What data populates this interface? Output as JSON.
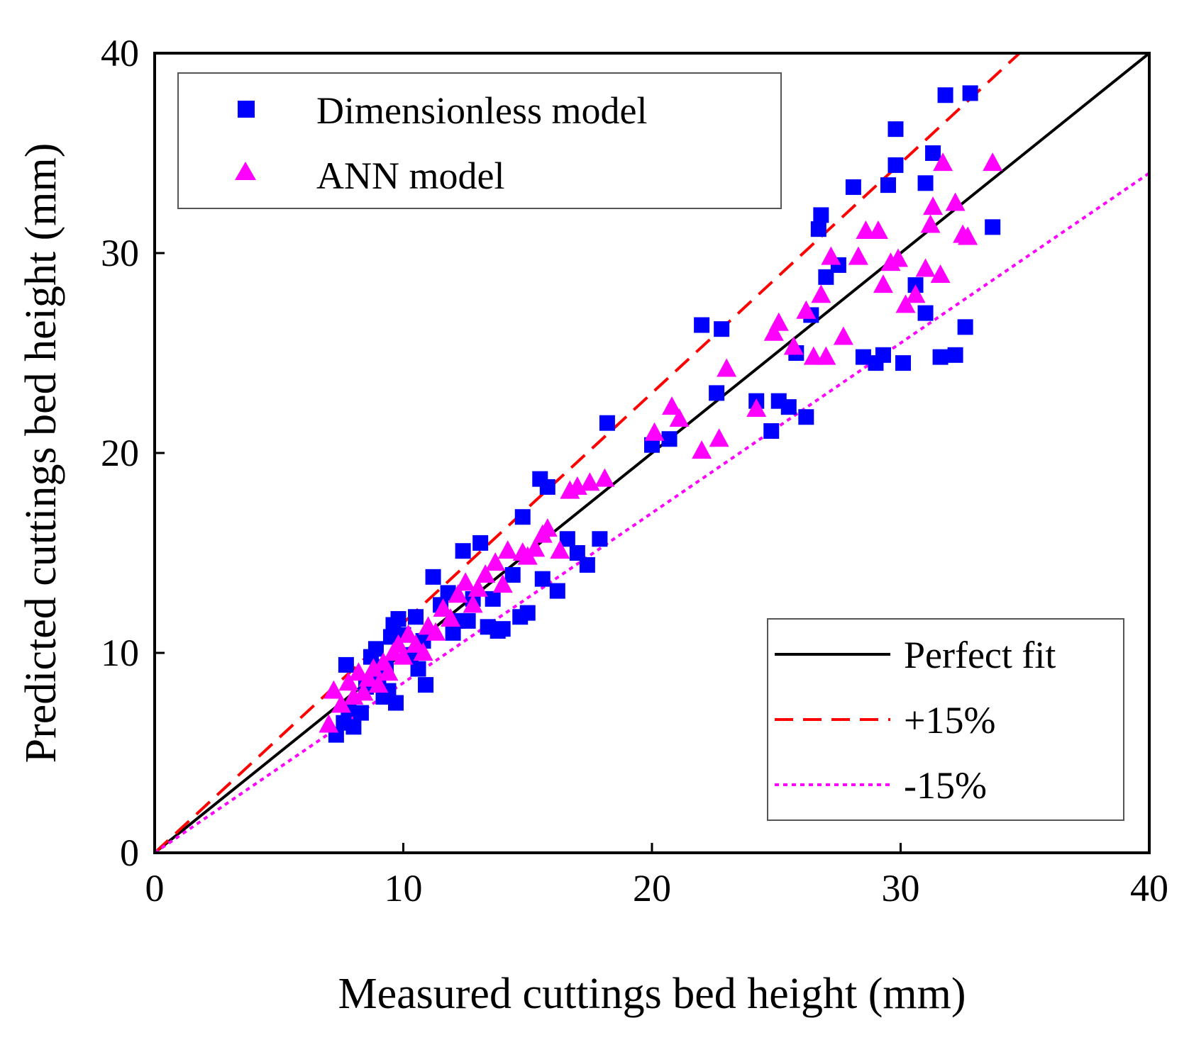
{
  "chart_data": {
    "type": "scatter",
    "title": "",
    "xlabel": "Measured cuttings bed height (mm)",
    "ylabel": "Predicted cuttings bed height (mm)",
    "xlim": [
      0,
      40
    ],
    "ylim": [
      0,
      40
    ],
    "xticks": [
      0,
      10,
      20,
      30,
      40
    ],
    "yticks": [
      0,
      10,
      20,
      30,
      40
    ],
    "grid": false,
    "legend_series_placement": "top-left",
    "legend_lines_placement": "bottom-right",
    "series": [
      {
        "name": "Dimensionless model",
        "marker": "square",
        "color": "#0000ff",
        "points": [
          [
            7.3,
            5.9
          ],
          [
            7.6,
            6.5
          ],
          [
            7.8,
            7.2
          ],
          [
            7.7,
            9.4
          ],
          [
            8.0,
            6.3
          ],
          [
            8.3,
            7.0
          ],
          [
            8.5,
            8.3
          ],
          [
            8.7,
            9.8
          ],
          [
            8.9,
            10.2
          ],
          [
            9.0,
            8.8
          ],
          [
            9.2,
            7.8
          ],
          [
            9.3,
            9.3
          ],
          [
            9.4,
            8.1
          ],
          [
            9.5,
            10.8
          ],
          [
            9.6,
            11.4
          ],
          [
            9.7,
            7.5
          ],
          [
            9.8,
            11.7
          ],
          [
            10.0,
            10.9
          ],
          [
            10.3,
            9.9
          ],
          [
            10.5,
            11.8
          ],
          [
            10.6,
            9.2
          ],
          [
            10.8,
            10.6
          ],
          [
            10.9,
            8.4
          ],
          [
            11.2,
            13.8
          ],
          [
            11.5,
            12.4
          ],
          [
            11.8,
            13.0
          ],
          [
            12.0,
            11.0
          ],
          [
            12.2,
            11.6
          ],
          [
            12.4,
            15.1
          ],
          [
            12.6,
            11.6
          ],
          [
            12.8,
            12.7
          ],
          [
            13.1,
            15.5
          ],
          [
            13.4,
            11.3
          ],
          [
            13.6,
            12.7
          ],
          [
            13.8,
            11.1
          ],
          [
            14.0,
            11.2
          ],
          [
            14.4,
            13.9
          ],
          [
            14.7,
            11.8
          ],
          [
            14.8,
            16.8
          ],
          [
            15.0,
            12.0
          ],
          [
            15.5,
            18.7
          ],
          [
            15.6,
            13.7
          ],
          [
            15.8,
            18.3
          ],
          [
            16.2,
            13.1
          ],
          [
            16.6,
            15.7
          ],
          [
            17.0,
            15.0
          ],
          [
            17.4,
            14.4
          ],
          [
            17.9,
            15.7
          ],
          [
            18.2,
            21.5
          ],
          [
            20.0,
            20.4
          ],
          [
            20.7,
            20.7
          ],
          [
            22.0,
            26.4
          ],
          [
            22.6,
            23.0
          ],
          [
            22.8,
            26.2
          ],
          [
            24.2,
            22.6
          ],
          [
            24.8,
            21.1
          ],
          [
            25.1,
            22.6
          ],
          [
            25.5,
            22.3
          ],
          [
            25.8,
            25.0
          ],
          [
            26.2,
            21.8
          ],
          [
            26.4,
            26.9
          ],
          [
            26.7,
            31.2
          ],
          [
            26.8,
            31.9
          ],
          [
            27.0,
            28.8
          ],
          [
            27.5,
            29.4
          ],
          [
            28.1,
            33.3
          ],
          [
            28.5,
            24.8
          ],
          [
            29.0,
            24.5
          ],
          [
            29.3,
            24.9
          ],
          [
            29.5,
            33.4
          ],
          [
            29.8,
            34.4
          ],
          [
            29.8,
            36.2
          ],
          [
            30.1,
            24.5
          ],
          [
            30.6,
            28.4
          ],
          [
            31.0,
            27.0
          ],
          [
            31.0,
            33.5
          ],
          [
            31.3,
            35.0
          ],
          [
            31.6,
            24.8
          ],
          [
            31.8,
            37.9
          ],
          [
            32.2,
            24.9
          ],
          [
            32.6,
            26.3
          ],
          [
            32.8,
            38.0
          ],
          [
            33.7,
            31.3
          ]
        ]
      },
      {
        "name": "ANN model",
        "marker": "triangle",
        "color": "#ff00ff",
        "points": [
          [
            7.0,
            6.4
          ],
          [
            7.2,
            8.1
          ],
          [
            7.5,
            7.4
          ],
          [
            7.8,
            8.5
          ],
          [
            8.0,
            7.8
          ],
          [
            8.2,
            9.0
          ],
          [
            8.4,
            8.0
          ],
          [
            8.6,
            8.7
          ],
          [
            8.8,
            9.2
          ],
          [
            9.0,
            8.4
          ],
          [
            9.2,
            9.5
          ],
          [
            9.4,
            9.0
          ],
          [
            9.6,
            10.0
          ],
          [
            9.8,
            10.4
          ],
          [
            10.0,
            9.8
          ],
          [
            10.2,
            10.9
          ],
          [
            10.5,
            10.4
          ],
          [
            10.8,
            10.0
          ],
          [
            11.0,
            11.3
          ],
          [
            11.3,
            11.0
          ],
          [
            11.6,
            12.2
          ],
          [
            11.9,
            11.7
          ],
          [
            12.2,
            12.9
          ],
          [
            12.5,
            13.5
          ],
          [
            12.8,
            12.4
          ],
          [
            13.0,
            13.2
          ],
          [
            13.3,
            13.9
          ],
          [
            13.7,
            14.5
          ],
          [
            14.0,
            13.4
          ],
          [
            14.2,
            15.1
          ],
          [
            14.8,
            15.0
          ],
          [
            15.0,
            14.8
          ],
          [
            15.3,
            15.2
          ],
          [
            15.6,
            15.9
          ],
          [
            15.8,
            16.2
          ],
          [
            16.3,
            15.1
          ],
          [
            16.7,
            18.1
          ],
          [
            17.0,
            18.3
          ],
          [
            17.5,
            18.5
          ],
          [
            18.1,
            18.7
          ],
          [
            20.1,
            21.0
          ],
          [
            20.8,
            22.3
          ],
          [
            21.1,
            21.7
          ],
          [
            22.0,
            20.1
          ],
          [
            22.7,
            20.7
          ],
          [
            23.0,
            24.2
          ],
          [
            24.2,
            22.2
          ],
          [
            24.9,
            26.0
          ],
          [
            25.1,
            26.5
          ],
          [
            25.7,
            25.3
          ],
          [
            26.2,
            27.1
          ],
          [
            26.5,
            24.8
          ],
          [
            26.8,
            27.9
          ],
          [
            27.0,
            24.8
          ],
          [
            27.2,
            29.8
          ],
          [
            27.7,
            25.8
          ],
          [
            28.3,
            29.8
          ],
          [
            28.6,
            31.1
          ],
          [
            29.1,
            31.1
          ],
          [
            29.3,
            28.4
          ],
          [
            29.6,
            29.5
          ],
          [
            29.9,
            29.7
          ],
          [
            30.2,
            27.4
          ],
          [
            30.6,
            27.9
          ],
          [
            31.0,
            29.2
          ],
          [
            31.2,
            31.4
          ],
          [
            31.3,
            32.3
          ],
          [
            31.6,
            28.9
          ],
          [
            31.7,
            34.5
          ],
          [
            32.2,
            32.5
          ],
          [
            32.5,
            30.9
          ],
          [
            32.7,
            30.8
          ],
          [
            33.7,
            34.5
          ]
        ]
      }
    ],
    "lines": [
      {
        "name": "Perfect fit",
        "slope": 1.0,
        "color": "#000000",
        "style": "solid"
      },
      {
        "name": "+15%",
        "slope": 1.15,
        "color": "#ff0000",
        "style": "dashed"
      },
      {
        "name": "-15%",
        "slope": 0.85,
        "color": "#ff00ff",
        "style": "dotted"
      }
    ]
  }
}
